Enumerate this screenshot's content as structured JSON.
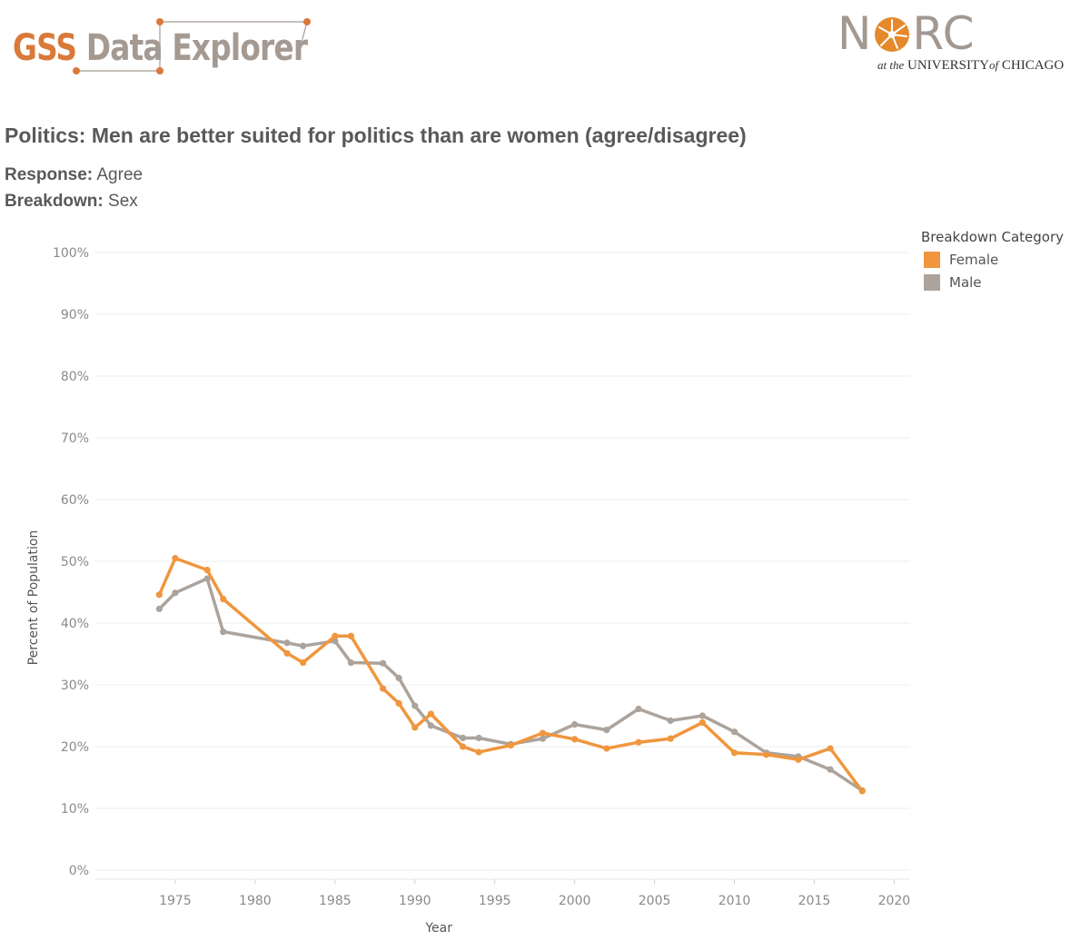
{
  "header": {
    "logo_gss": "GSS",
    "logo_rest": "Data Explorer",
    "norc_pre": "N",
    "norc_post": "RC",
    "norc_at": "at the",
    "norc_univ": "UNIVERSITY",
    "norc_of": "of",
    "norc_chicago": "CHICAGO"
  },
  "title": "Politics: Men are better suited for politics than are women (agree/disagree)",
  "response": {
    "label": "Response:",
    "value": "Agree"
  },
  "breakdown": {
    "label": "Breakdown:",
    "value": "Sex"
  },
  "legend": {
    "title": "Breakdown Category",
    "items": [
      {
        "label": "Female",
        "color": "#f0963e"
      },
      {
        "label": "Male",
        "color": "#aba39c"
      }
    ]
  },
  "chart_data": {
    "type": "line",
    "xlabel": "Year",
    "ylabel": "Percent of Population",
    "xlim": [
      1970,
      2021
    ],
    "ylim": [
      0,
      100
    ],
    "xticks": [
      1975,
      1980,
      1985,
      1990,
      1995,
      2000,
      2005,
      2010,
      2015,
      2020
    ],
    "yticks": [
      0,
      10,
      20,
      30,
      40,
      50,
      60,
      70,
      80,
      90,
      100
    ],
    "ytick_labels": [
      "0%",
      "10%",
      "20%",
      "30%",
      "40%",
      "50%",
      "60%",
      "70%",
      "80%",
      "90%",
      "100%"
    ],
    "grid": true,
    "legend_position": "top-right",
    "series": [
      {
        "name": "Female",
        "color": "#f0963e",
        "x": [
          1974,
          1975,
          1977,
          1978,
          1982,
          1983,
          1985,
          1986,
          1988,
          1989,
          1990,
          1991,
          1993,
          1994,
          1996,
          1998,
          2000,
          2002,
          2004,
          2006,
          2008,
          2010,
          2012,
          2014,
          2016,
          2018
        ],
        "y": [
          44.6,
          50.5,
          48.6,
          43.9,
          35.1,
          33.6,
          37.9,
          37.9,
          29.4,
          27.0,
          23.1,
          25.3,
          20.0,
          19.1,
          20.2,
          22.2,
          21.2,
          19.7,
          20.7,
          21.3,
          23.9,
          19.0,
          18.7,
          17.9,
          19.7,
          12.8
        ]
      },
      {
        "name": "Male",
        "color": "#aba39c",
        "x": [
          1974,
          1975,
          1977,
          1978,
          1982,
          1983,
          1985,
          1986,
          1988,
          1989,
          1990,
          1991,
          1993,
          1994,
          1996,
          1998,
          2000,
          2002,
          2004,
          2006,
          2008,
          2010,
          2012,
          2014,
          2016,
          2018
        ],
        "y": [
          42.3,
          44.9,
          47.2,
          38.6,
          36.8,
          36.3,
          37.1,
          33.6,
          33.5,
          31.1,
          26.6,
          23.4,
          21.4,
          21.4,
          20.4,
          21.3,
          23.6,
          22.7,
          26.1,
          24.2,
          25.0,
          22.4,
          19.0,
          18.4,
          16.3,
          12.9
        ]
      }
    ]
  }
}
